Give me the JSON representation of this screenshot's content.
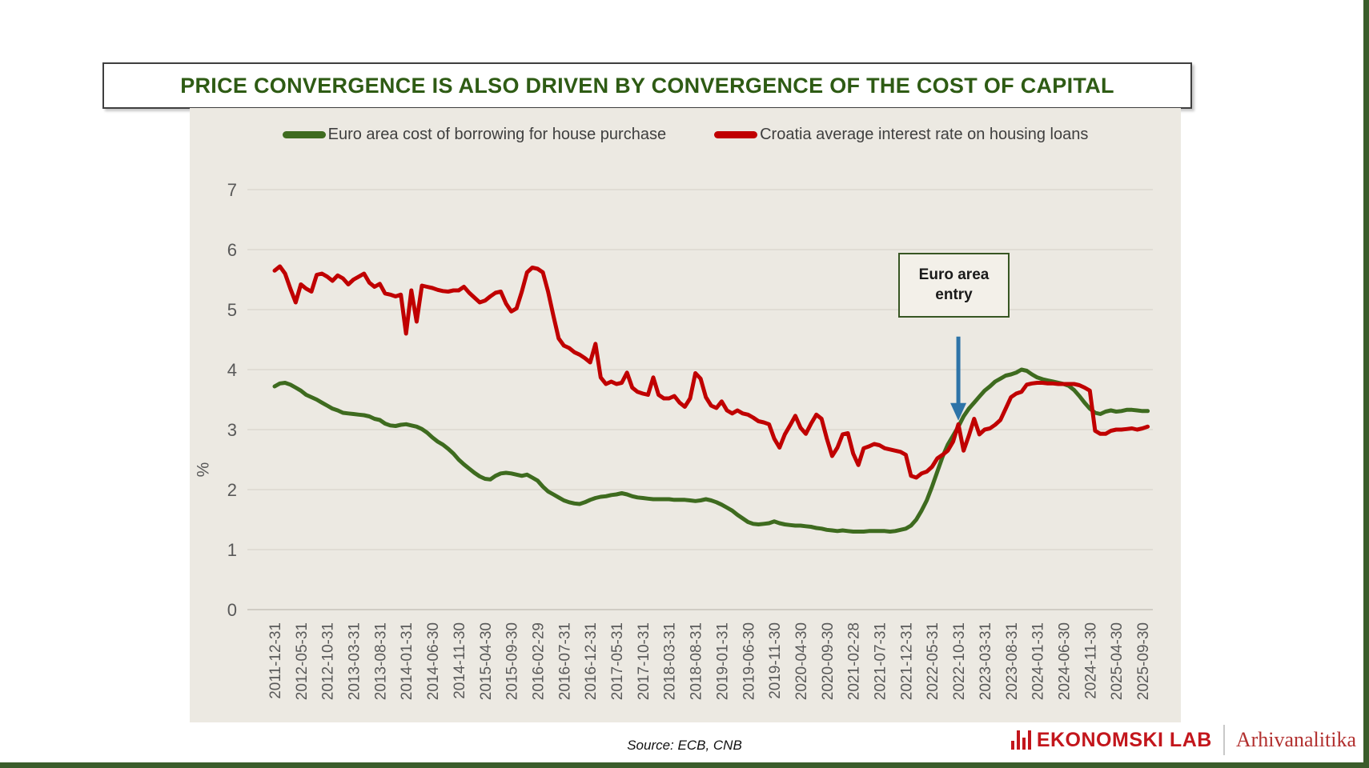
{
  "title": "PRICE CONVERGENCE IS ALSO DRIVEN BY CONVERGENCE OF THE COST OF CAPITAL",
  "legend": [
    {
      "label": "Euro area cost of borrowing for house purchase",
      "color": "#3E6B1F"
    },
    {
      "label": "Croatia average interest rate on housing loans",
      "color": "#C00000"
    }
  ],
  "annotation_label": "Euro area entry",
  "source": "Source: ECB, CNB",
  "footer": {
    "brand": "EKONOMSKI LAB",
    "partner": "Arhivanalitika",
    "brand_color": "#C3161C"
  },
  "chart_data": {
    "type": "line",
    "title": "",
    "ylabel": "%",
    "ylim": [
      0,
      7
    ],
    "yticks": [
      0,
      1,
      2,
      3,
      4,
      5,
      6,
      7
    ],
    "grid": true,
    "grid_color": "#D8D4CB",
    "zero_line_color": "#C6C2B9",
    "plot_bg": "#ECE9E2",
    "legend_position": "top",
    "x_start": "2011-12",
    "x_end": "2025-10",
    "x_freq": "monthly",
    "x_tick_every": 5,
    "x_tick_labels": [
      "2011-12-31",
      "2012-05-31",
      "2012-10-31",
      "2013-03-31",
      "2013-08-31",
      "2014-01-31",
      "2014-06-30",
      "2014-11-30",
      "2015-04-30",
      "2015-09-30",
      "2016-02-29",
      "2016-07-31",
      "2016-12-31",
      "2017-05-31",
      "2017-10-31",
      "2018-03-31",
      "2018-08-31",
      "2019-01-31",
      "2019-06-30",
      "2019-11-30",
      "2020-04-30",
      "2020-09-30",
      "2021-02-28",
      "2021-07-31",
      "2021-12-31",
      "2022-05-31",
      "2022-10-31",
      "2023-03-31",
      "2023-08-31",
      "2024-01-31",
      "2024-06-30",
      "2024-11-30",
      "2025-04-30",
      "2025-09-30"
    ],
    "series": [
      {
        "id": "euro-area",
        "name": "Euro area cost of borrowing for house purchase",
        "color": "#3E6B1F",
        "values": [
          3.72,
          3.77,
          3.78,
          3.75,
          3.7,
          3.65,
          3.58,
          3.54,
          3.5,
          3.45,
          3.4,
          3.35,
          3.32,
          3.28,
          3.27,
          3.26,
          3.25,
          3.24,
          3.22,
          3.18,
          3.16,
          3.1,
          3.07,
          3.06,
          3.08,
          3.09,
          3.07,
          3.05,
          3.01,
          2.95,
          2.87,
          2.8,
          2.75,
          2.68,
          2.6,
          2.5,
          2.42,
          2.35,
          2.28,
          2.22,
          2.18,
          2.17,
          2.23,
          2.27,
          2.28,
          2.27,
          2.25,
          2.23,
          2.25,
          2.2,
          2.15,
          2.05,
          1.97,
          1.92,
          1.87,
          1.82,
          1.79,
          1.77,
          1.76,
          1.79,
          1.83,
          1.86,
          1.88,
          1.89,
          1.91,
          1.92,
          1.94,
          1.92,
          1.89,
          1.87,
          1.86,
          1.85,
          1.84,
          1.84,
          1.84,
          1.84,
          1.83,
          1.83,
          1.83,
          1.82,
          1.81,
          1.82,
          1.84,
          1.82,
          1.79,
          1.75,
          1.7,
          1.65,
          1.58,
          1.52,
          1.46,
          1.43,
          1.42,
          1.43,
          1.44,
          1.47,
          1.44,
          1.42,
          1.41,
          1.4,
          1.4,
          1.39,
          1.38,
          1.36,
          1.35,
          1.33,
          1.32,
          1.31,
          1.32,
          1.31,
          1.3,
          1.3,
          1.3,
          1.31,
          1.31,
          1.31,
          1.31,
          1.3,
          1.31,
          1.33,
          1.35,
          1.4,
          1.5,
          1.65,
          1.82,
          2.05,
          2.3,
          2.55,
          2.75,
          2.9,
          3.05,
          3.22,
          3.35,
          3.45,
          3.55,
          3.65,
          3.72,
          3.8,
          3.85,
          3.9,
          3.92,
          3.95,
          4.0,
          3.98,
          3.92,
          3.87,
          3.84,
          3.82,
          3.8,
          3.78,
          3.76,
          3.73,
          3.66,
          3.56,
          3.45,
          3.35,
          3.28,
          3.26,
          3.3,
          3.32,
          3.3,
          3.31,
          3.33,
          3.33,
          3.32,
          3.31,
          3.31
        ]
      },
      {
        "id": "croatia",
        "name": "Croatia average interest rate on housing loans",
        "color": "#C00000",
        "values": [
          5.65,
          5.72,
          5.6,
          5.35,
          5.12,
          5.42,
          5.35,
          5.3,
          5.58,
          5.6,
          5.55,
          5.48,
          5.57,
          5.52,
          5.42,
          5.5,
          5.55,
          5.6,
          5.45,
          5.38,
          5.43,
          5.27,
          5.25,
          5.22,
          5.25,
          4.6,
          5.32,
          4.8,
          5.4,
          5.38,
          5.36,
          5.33,
          5.31,
          5.3,
          5.32,
          5.32,
          5.38,
          5.28,
          5.2,
          5.12,
          5.15,
          5.22,
          5.28,
          5.3,
          5.1,
          4.97,
          5.02,
          5.3,
          5.62,
          5.7,
          5.68,
          5.62,
          5.3,
          4.9,
          4.52,
          4.4,
          4.36,
          4.29,
          4.25,
          4.19,
          4.12,
          4.43,
          3.87,
          3.76,
          3.8,
          3.76,
          3.78,
          3.95,
          3.7,
          3.63,
          3.6,
          3.58,
          3.87,
          3.58,
          3.52,
          3.52,
          3.56,
          3.45,
          3.38,
          3.52,
          3.94,
          3.85,
          3.54,
          3.4,
          3.36,
          3.47,
          3.32,
          3.27,
          3.32,
          3.27,
          3.25,
          3.2,
          3.14,
          3.12,
          3.09,
          2.85,
          2.7,
          2.92,
          3.07,
          3.23,
          3.03,
          2.93,
          3.1,
          3.25,
          3.18,
          2.85,
          2.56,
          2.7,
          2.92,
          2.94,
          2.6,
          2.41,
          2.69,
          2.72,
          2.76,
          2.74,
          2.69,
          2.67,
          2.65,
          2.63,
          2.58,
          2.23,
          2.2,
          2.27,
          2.3,
          2.38,
          2.52,
          2.58,
          2.65,
          2.8,
          3.09,
          2.65,
          2.9,
          3.18,
          2.92,
          3.0,
          3.02,
          3.08,
          3.16,
          3.35,
          3.54,
          3.6,
          3.63,
          3.75,
          3.77,
          3.78,
          3.78,
          3.77,
          3.77,
          3.76,
          3.76,
          3.76,
          3.76,
          3.74,
          3.7,
          3.65,
          2.98,
          2.93,
          2.93,
          2.98,
          3.0,
          3.0,
          3.01,
          3.02,
          3.0,
          3.02,
          3.05
        ]
      }
    ],
    "annotation": {
      "label": "Euro area entry",
      "x_label": "2022-10-31",
      "x_index": 130,
      "from_value": 4.55,
      "to_value": 3.15,
      "arrow_color": "#2E74A8"
    }
  }
}
